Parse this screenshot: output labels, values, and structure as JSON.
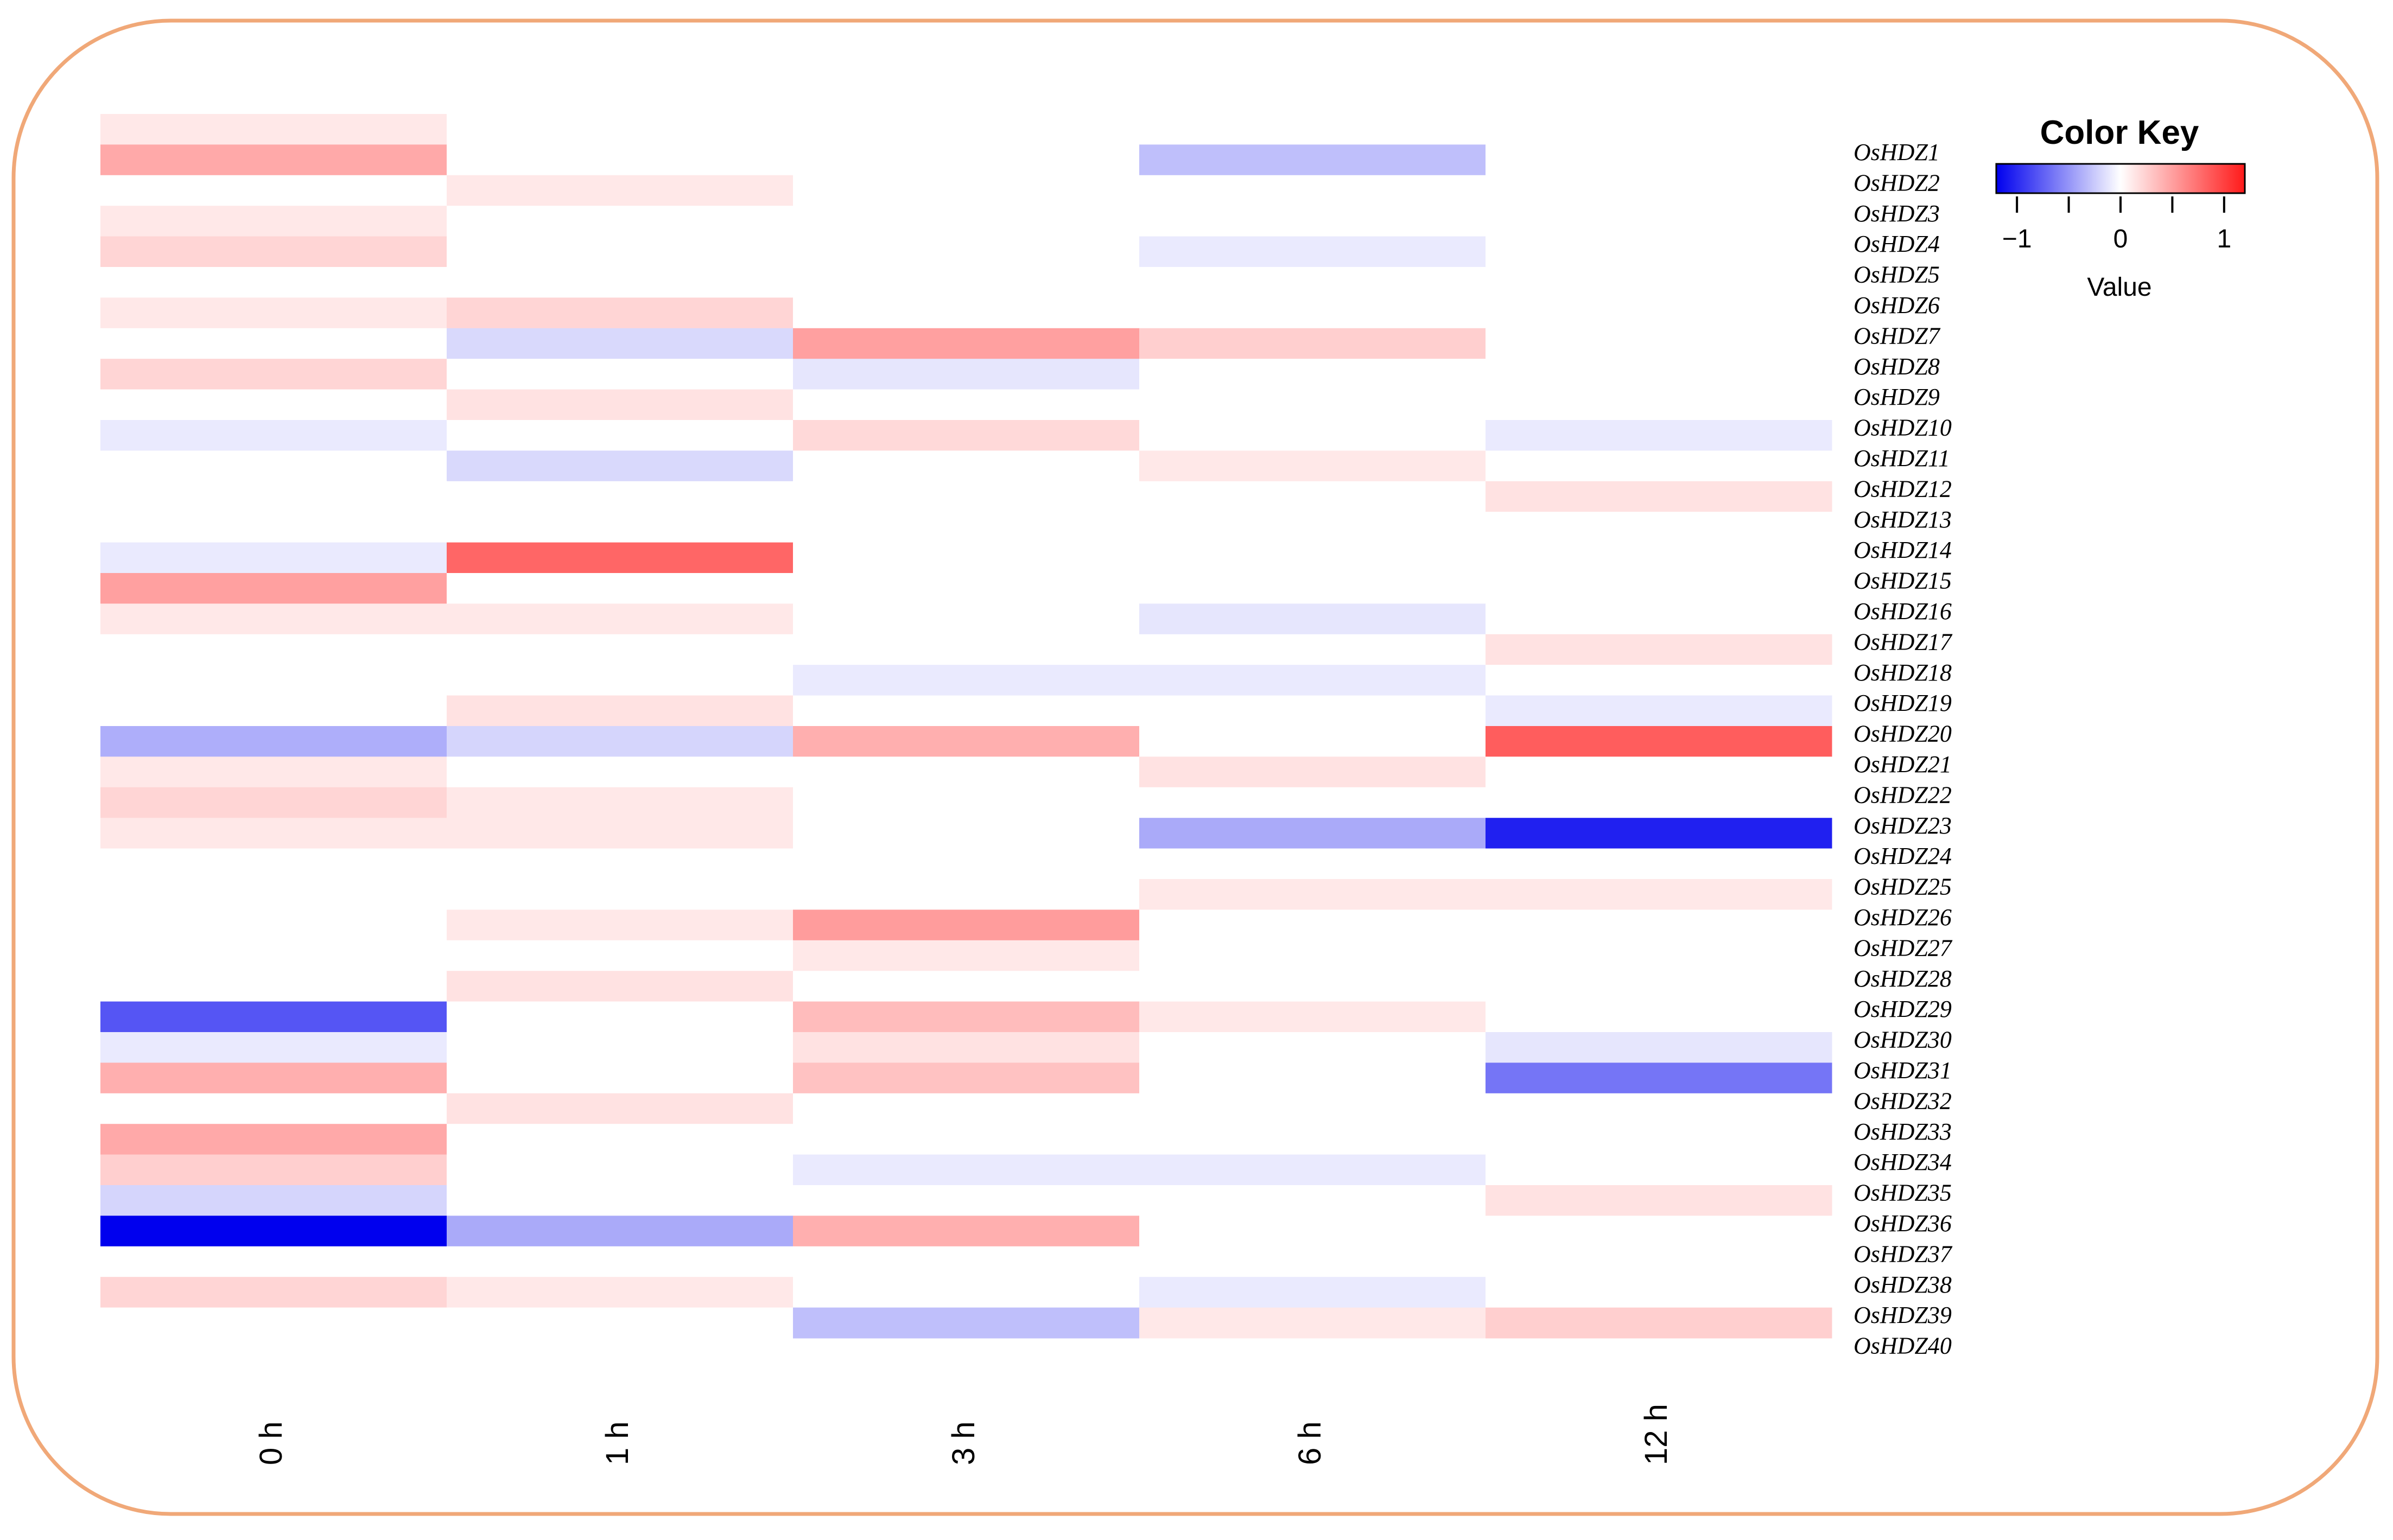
{
  "chart_data": {
    "type": "heatmap",
    "title": "",
    "columns": [
      "0 h",
      "1 h",
      "3 h",
      "6 h",
      "12 h"
    ],
    "rows": [
      "OsHDZ1",
      "OsHDZ2",
      "OsHDZ3",
      "OsHDZ4",
      "OsHDZ5",
      "OsHDZ6",
      "OsHDZ7",
      "OsHDZ8",
      "OsHDZ9",
      "OsHDZ10",
      "OsHDZ11",
      "OsHDZ12",
      "OsHDZ13",
      "OsHDZ14",
      "OsHDZ15",
      "OsHDZ16",
      "OsHDZ17",
      "OsHDZ18",
      "OsHDZ19",
      "OsHDZ20",
      "OsHDZ21",
      "OsHDZ22",
      "OsHDZ23",
      "OsHDZ24",
      "OsHDZ25",
      "OsHDZ26",
      "OsHDZ27",
      "OsHDZ28",
      "OsHDZ29",
      "OsHDZ30",
      "OsHDZ31",
      "OsHDZ32",
      "OsHDZ33",
      "OsHDZ34",
      "OsHDZ35",
      "OsHDZ36",
      "OsHDZ37",
      "OsHDZ38",
      "OsHDZ39",
      "OsHDZ40"
    ],
    "values": [
      [
        0.12,
        0,
        0,
        0,
        0
      ],
      [
        0.45,
        0,
        0,
        -0.3,
        0
      ],
      [
        0,
        0.12,
        0,
        0,
        0
      ],
      [
        0.12,
        0,
        0,
        0,
        0
      ],
      [
        0.22,
        0,
        0,
        -0.1,
        0
      ],
      [
        0,
        0,
        0,
        0,
        0
      ],
      [
        0.12,
        0.22,
        0,
        0,
        0
      ],
      [
        0,
        -0.18,
        0.5,
        0.25,
        0
      ],
      [
        0.22,
        0,
        -0.12,
        0,
        0
      ],
      [
        0,
        0.15,
        0,
        0,
        0
      ],
      [
        -0.1,
        0,
        0.2,
        0,
        -0.1
      ],
      [
        0,
        -0.18,
        0,
        0.12,
        0
      ],
      [
        0,
        0,
        0,
        0,
        0.15
      ],
      [
        0,
        0,
        0,
        0,
        0
      ],
      [
        -0.1,
        0.8,
        0,
        0,
        0
      ],
      [
        0.5,
        0,
        0,
        0,
        0
      ],
      [
        0.12,
        0.12,
        0,
        -0.12,
        0
      ],
      [
        0,
        0,
        0,
        0,
        0.15
      ],
      [
        0,
        0,
        -0.1,
        -0.1,
        0
      ],
      [
        0,
        0.15,
        0,
        0,
        -0.1
      ],
      [
        -0.38,
        -0.2,
        0.42,
        0,
        0.85
      ],
      [
        0.12,
        0,
        0,
        0.15,
        0
      ],
      [
        0.22,
        0.12,
        0,
        0,
        0
      ],
      [
        0.12,
        0.12,
        0,
        -0.4,
        -1.05
      ],
      [
        0,
        0,
        0,
        0,
        0
      ],
      [
        0,
        0,
        0,
        0.12,
        0.12
      ],
      [
        0,
        0.12,
        0.52,
        0,
        0
      ],
      [
        0,
        0,
        0.12,
        0,
        0
      ],
      [
        0,
        0.15,
        0,
        0,
        0
      ],
      [
        -0.8,
        0,
        0.35,
        0.12,
        0
      ],
      [
        -0.1,
        0,
        0.15,
        0,
        -0.12
      ],
      [
        0.42,
        0,
        0.32,
        0,
        -0.65
      ],
      [
        0,
        0.15,
        0,
        0,
        0
      ],
      [
        0.45,
        0,
        0,
        0,
        0
      ],
      [
        0.25,
        0,
        -0.1,
        -0.1,
        0
      ],
      [
        -0.2,
        0,
        0,
        0,
        0.15
      ],
      [
        -1.2,
        -0.4,
        0.42,
        0,
        0
      ],
      [
        0,
        0,
        0,
        0,
        0
      ],
      [
        0.22,
        0.12,
        0,
        -0.1,
        0
      ],
      [
        0,
        0,
        -0.3,
        0.12,
        0.25
      ]
    ],
    "colorscale": {
      "min": -1.2,
      "max": 1.2,
      "low_color": "#0000ee",
      "mid_color": "#ffffff",
      "high_color": "#ff1a1a"
    },
    "legend": {
      "title": "Color Key",
      "ticks": [
        -1,
        0,
        1
      ],
      "tick_labels": [
        "−1",
        "0",
        "1"
      ],
      "axis_label": "Value",
      "placement": "top-right"
    }
  },
  "frame": {
    "border_color": "#f0a878"
  }
}
